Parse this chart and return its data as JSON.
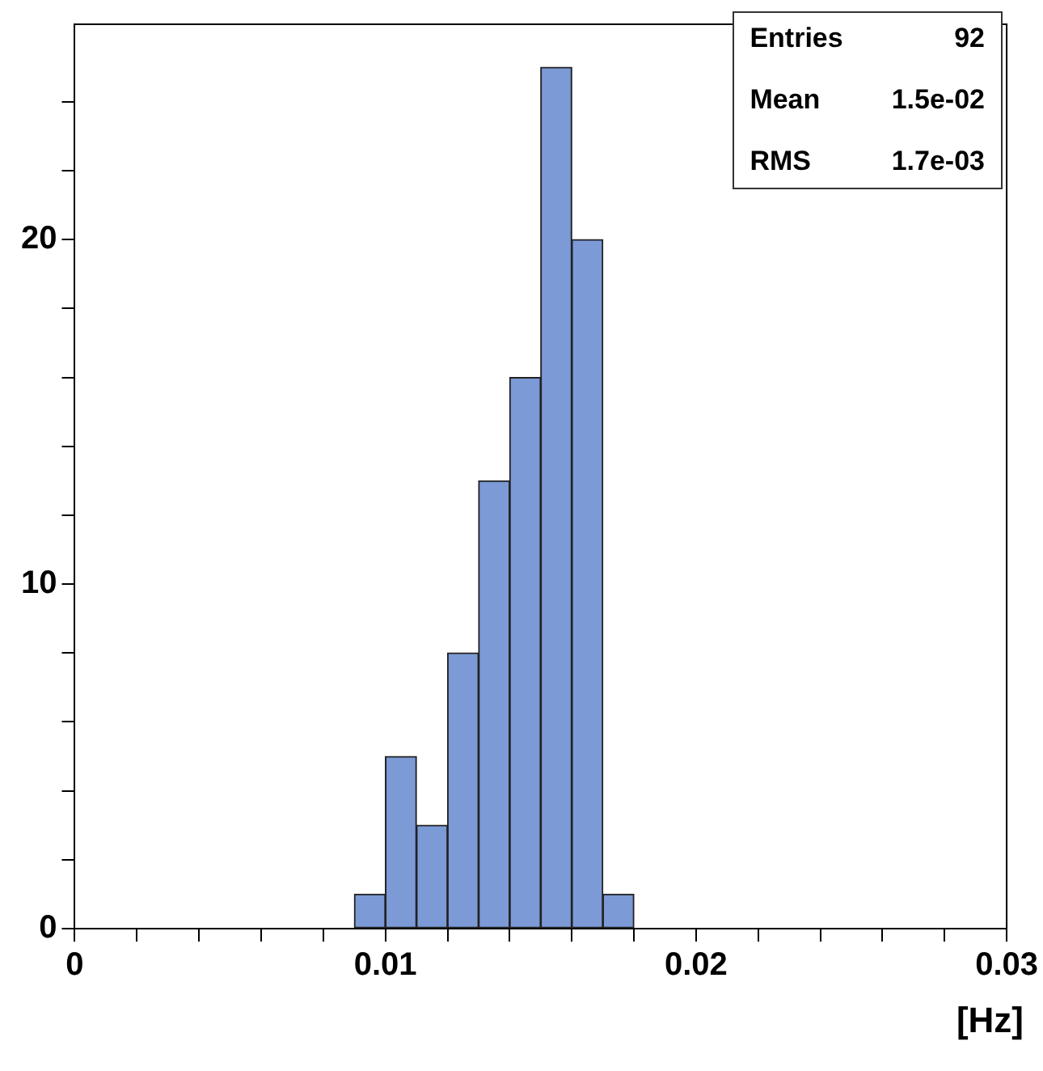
{
  "chart_data": {
    "type": "histogram",
    "bins": [
      0.009,
      0.01,
      0.011,
      0.012,
      0.013,
      0.014,
      0.015,
      0.016,
      0.017,
      0.018
    ],
    "values": [
      1,
      5,
      3,
      8,
      13,
      16,
      25,
      20,
      1
    ],
    "color": "#7b9ad6",
    "xlabel": "[Hz]",
    "xlim": [
      0,
      0.03
    ],
    "xticks": [
      0,
      {
        "value": 0.002,
        "label": null
      },
      {
        "value": 0.004,
        "label": null
      },
      {
        "value": 0.006,
        "label": null
      },
      {
        "value": 0.008,
        "label": null
      },
      0.01,
      {
        "value": 0.012,
        "label": null
      },
      {
        "value": 0.014,
        "label": null
      },
      {
        "value": 0.016,
        "label": null
      },
      {
        "value": 0.018,
        "label": null
      },
      0.02,
      {
        "value": 0.022,
        "label": null
      },
      {
        "value": 0.024,
        "label": null
      },
      {
        "value": 0.026,
        "label": null
      },
      {
        "value": 0.028,
        "label": null
      },
      0.03
    ],
    "ylim": [
      0,
      26.25
    ],
    "yticks": [
      0,
      {
        "value": 2,
        "label": null
      },
      {
        "value": 4,
        "label": null
      },
      {
        "value": 6,
        "label": null
      },
      {
        "value": 8,
        "label": null
      },
      10,
      {
        "value": 12,
        "label": null
      },
      {
        "value": 14,
        "label": null
      },
      {
        "value": 16,
        "label": null
      },
      {
        "value": 18,
        "label": null
      },
      20,
      {
        "value": 22,
        "label": null
      },
      {
        "value": 24,
        "label": null
      }
    ],
    "annotations": [
      "Entries",
      "92",
      "Mean",
      "1.5e-02",
      "RMS",
      "1.7e-03"
    ],
    "grid": false,
    "legend": false
  }
}
